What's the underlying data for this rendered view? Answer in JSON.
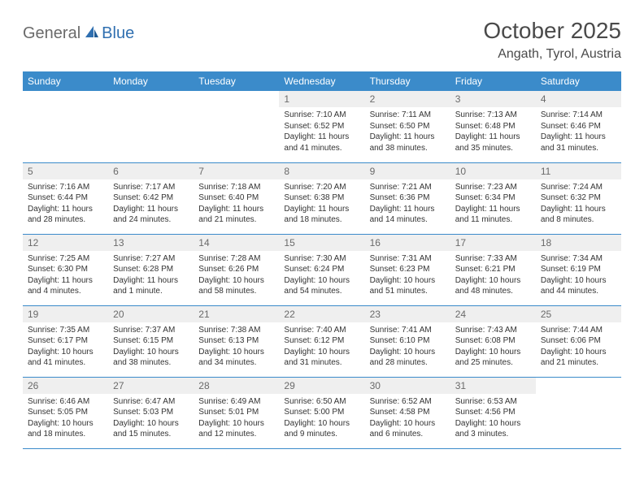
{
  "brand": {
    "part1": "General",
    "part2": "Blue"
  },
  "header": {
    "month_title": "October 2025",
    "location": "Angath, Tyrol, Austria"
  },
  "style": {
    "accent": "#3b8bca",
    "header_text": "#ffffff",
    "daynum_bg": "#efefef",
    "daynum_color": "#6a6a6a",
    "body_text": "#333333",
    "title_color": "#4a4a4a",
    "brand_gray": "#6a6a6a",
    "brand_blue": "#2f6fb0",
    "row_border": "#3b8bca"
  },
  "weekdays": [
    "Sunday",
    "Monday",
    "Tuesday",
    "Wednesday",
    "Thursday",
    "Friday",
    "Saturday"
  ],
  "first_weekday_index": 3,
  "days": [
    {
      "n": 1,
      "sr": "7:10 AM",
      "ss": "6:52 PM",
      "dl": "11 hours and 41 minutes."
    },
    {
      "n": 2,
      "sr": "7:11 AM",
      "ss": "6:50 PM",
      "dl": "11 hours and 38 minutes."
    },
    {
      "n": 3,
      "sr": "7:13 AM",
      "ss": "6:48 PM",
      "dl": "11 hours and 35 minutes."
    },
    {
      "n": 4,
      "sr": "7:14 AM",
      "ss": "6:46 PM",
      "dl": "11 hours and 31 minutes."
    },
    {
      "n": 5,
      "sr": "7:16 AM",
      "ss": "6:44 PM",
      "dl": "11 hours and 28 minutes."
    },
    {
      "n": 6,
      "sr": "7:17 AM",
      "ss": "6:42 PM",
      "dl": "11 hours and 24 minutes."
    },
    {
      "n": 7,
      "sr": "7:18 AM",
      "ss": "6:40 PM",
      "dl": "11 hours and 21 minutes."
    },
    {
      "n": 8,
      "sr": "7:20 AM",
      "ss": "6:38 PM",
      "dl": "11 hours and 18 minutes."
    },
    {
      "n": 9,
      "sr": "7:21 AM",
      "ss": "6:36 PM",
      "dl": "11 hours and 14 minutes."
    },
    {
      "n": 10,
      "sr": "7:23 AM",
      "ss": "6:34 PM",
      "dl": "11 hours and 11 minutes."
    },
    {
      "n": 11,
      "sr": "7:24 AM",
      "ss": "6:32 PM",
      "dl": "11 hours and 8 minutes."
    },
    {
      "n": 12,
      "sr": "7:25 AM",
      "ss": "6:30 PM",
      "dl": "11 hours and 4 minutes."
    },
    {
      "n": 13,
      "sr": "7:27 AM",
      "ss": "6:28 PM",
      "dl": "11 hours and 1 minute."
    },
    {
      "n": 14,
      "sr": "7:28 AM",
      "ss": "6:26 PM",
      "dl": "10 hours and 58 minutes."
    },
    {
      "n": 15,
      "sr": "7:30 AM",
      "ss": "6:24 PM",
      "dl": "10 hours and 54 minutes."
    },
    {
      "n": 16,
      "sr": "7:31 AM",
      "ss": "6:23 PM",
      "dl": "10 hours and 51 minutes."
    },
    {
      "n": 17,
      "sr": "7:33 AM",
      "ss": "6:21 PM",
      "dl": "10 hours and 48 minutes."
    },
    {
      "n": 18,
      "sr": "7:34 AM",
      "ss": "6:19 PM",
      "dl": "10 hours and 44 minutes."
    },
    {
      "n": 19,
      "sr": "7:35 AM",
      "ss": "6:17 PM",
      "dl": "10 hours and 41 minutes."
    },
    {
      "n": 20,
      "sr": "7:37 AM",
      "ss": "6:15 PM",
      "dl": "10 hours and 38 minutes."
    },
    {
      "n": 21,
      "sr": "7:38 AM",
      "ss": "6:13 PM",
      "dl": "10 hours and 34 minutes."
    },
    {
      "n": 22,
      "sr": "7:40 AM",
      "ss": "6:12 PM",
      "dl": "10 hours and 31 minutes."
    },
    {
      "n": 23,
      "sr": "7:41 AM",
      "ss": "6:10 PM",
      "dl": "10 hours and 28 minutes."
    },
    {
      "n": 24,
      "sr": "7:43 AM",
      "ss": "6:08 PM",
      "dl": "10 hours and 25 minutes."
    },
    {
      "n": 25,
      "sr": "7:44 AM",
      "ss": "6:06 PM",
      "dl": "10 hours and 21 minutes."
    },
    {
      "n": 26,
      "sr": "6:46 AM",
      "ss": "5:05 PM",
      "dl": "10 hours and 18 minutes."
    },
    {
      "n": 27,
      "sr": "6:47 AM",
      "ss": "5:03 PM",
      "dl": "10 hours and 15 minutes."
    },
    {
      "n": 28,
      "sr": "6:49 AM",
      "ss": "5:01 PM",
      "dl": "10 hours and 12 minutes."
    },
    {
      "n": 29,
      "sr": "6:50 AM",
      "ss": "5:00 PM",
      "dl": "10 hours and 9 minutes."
    },
    {
      "n": 30,
      "sr": "6:52 AM",
      "ss": "4:58 PM",
      "dl": "10 hours and 6 minutes."
    },
    {
      "n": 31,
      "sr": "6:53 AM",
      "ss": "4:56 PM",
      "dl": "10 hours and 3 minutes."
    }
  ],
  "labels": {
    "sunrise": "Sunrise:",
    "sunset": "Sunset:",
    "daylight": "Daylight:"
  }
}
